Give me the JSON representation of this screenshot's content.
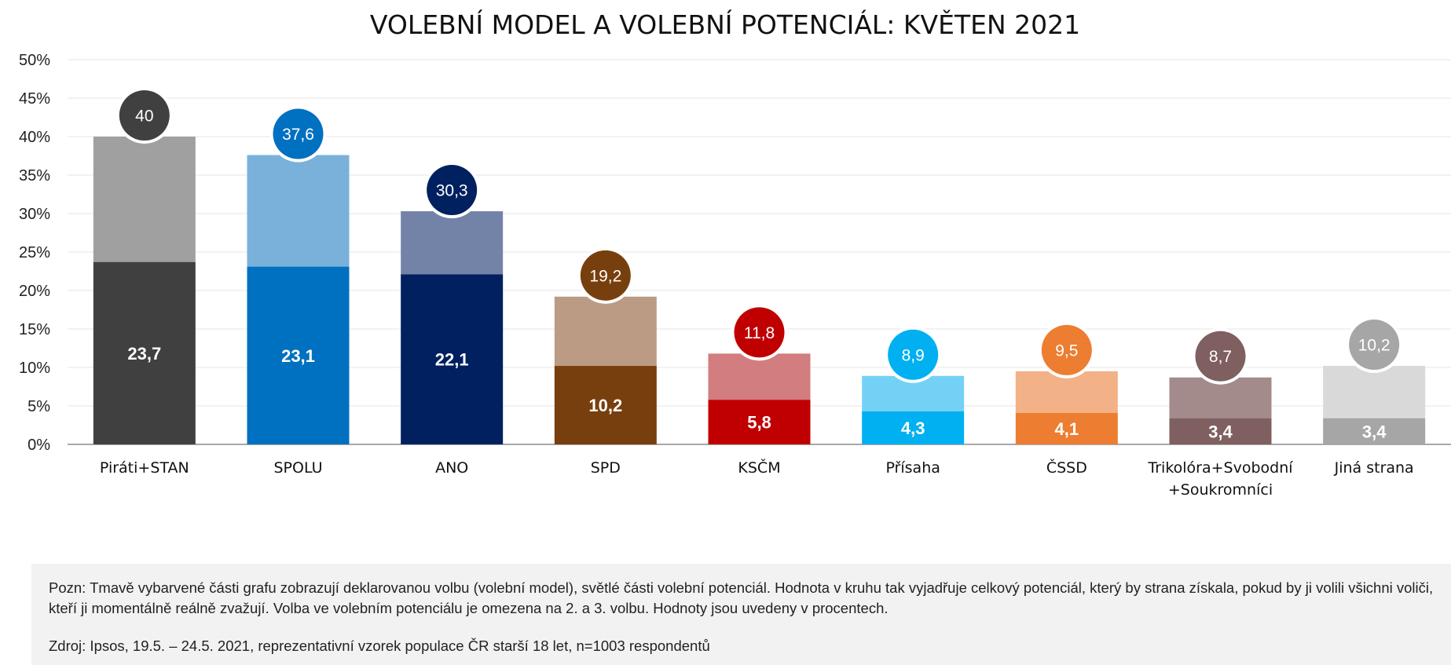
{
  "chart_data": {
    "type": "bar",
    "stacked": true,
    "title": "VOLEBNÍ MODEL A VOLEBNÍ POTENCIÁL: KVĚTEN 2021",
    "xlabel": "",
    "ylabel": "",
    "ylim": [
      0,
      50
    ],
    "yticks": [
      "0%",
      "5%",
      "10%",
      "15%",
      "20%",
      "25%",
      "30%",
      "35%",
      "40%",
      "45%",
      "50%"
    ],
    "grid": true,
    "legend": "none",
    "categories": [
      [
        "Piráti+STAN"
      ],
      [
        "SPOLU"
      ],
      [
        "ANO"
      ],
      [
        "SPD"
      ],
      [
        "KSČM"
      ],
      [
        "Přísaha"
      ],
      [
        "ČSSD"
      ],
      [
        "Trikolóra+Svobodní",
        "+Soukromníci"
      ],
      [
        "Jiná strana"
      ]
    ],
    "model": [
      {
        "value": 23.7,
        "label": "23,7",
        "color": "#404040"
      },
      {
        "value": 23.1,
        "label": "23,1",
        "color": "#0070c0"
      },
      {
        "value": 22.1,
        "label": "22,1",
        "color": "#002060"
      },
      {
        "value": 10.2,
        "label": "10,2",
        "color": "#783f0e"
      },
      {
        "value": 5.8,
        "label": "5,8",
        "color": "#c00000"
      },
      {
        "value": 4.3,
        "label": "4,3",
        "color": "#00b0f0"
      },
      {
        "value": 4.1,
        "label": "4,1",
        "color": "#ed7d31"
      },
      {
        "value": 3.4,
        "label": "3,4",
        "color": "#7f5f60"
      },
      {
        "value": 3.4,
        "label": "3,4",
        "color": "#a6a6a6"
      }
    ],
    "potential": [
      {
        "value": 40,
        "label": "40",
        "color": "#a0a0a0",
        "bubble": "#404040"
      },
      {
        "value": 37.6,
        "label": "37,6",
        "color": "#7ab1da",
        "bubble": "#0070c0"
      },
      {
        "value": 30.3,
        "label": "30,3",
        "color": "#7383a8",
        "bubble": "#002060"
      },
      {
        "value": 19.2,
        "label": "19,2",
        "color": "#bc9b84",
        "bubble": "#783f0e"
      },
      {
        "value": 11.8,
        "label": "11,8",
        "color": "#d27d7f",
        "bubble": "#c00000"
      },
      {
        "value": 8.9,
        "label": "8,9",
        "color": "#74d1f6",
        "bubble": "#00b0f0"
      },
      {
        "value": 9.5,
        "label": "9,5",
        "color": "#f3b187",
        "bubble": "#ed7d31"
      },
      {
        "value": 8.7,
        "label": "8,7",
        "color": "#a38a8b",
        "bubble": "#7f5f60"
      },
      {
        "value": 10.2,
        "label": "10,2",
        "color": "#d9d9d9",
        "bubble": "#a6a6a6"
      }
    ]
  },
  "note": {
    "text": "Pozn: Tmavě vybarvené části grafu zobrazují deklarovanou volbu (volební model), světlé části volební potenciál. Hodnota v kruhu tak vyjadřuje celkový potenciál, který by strana získala, pokud by ji volili všichni voliči, kteří ji momentálně reálně zvažují. Volba ve volebním potenciálu je omezena na 2. a 3. volbu. Hodnoty jsou uvedeny v procentech.",
    "source": "Zdroj: Ipsos, 19.5. – 24.5. 2021, reprezentativní vzorek populace ČR starší 18 let, n=1003 respondentů"
  }
}
